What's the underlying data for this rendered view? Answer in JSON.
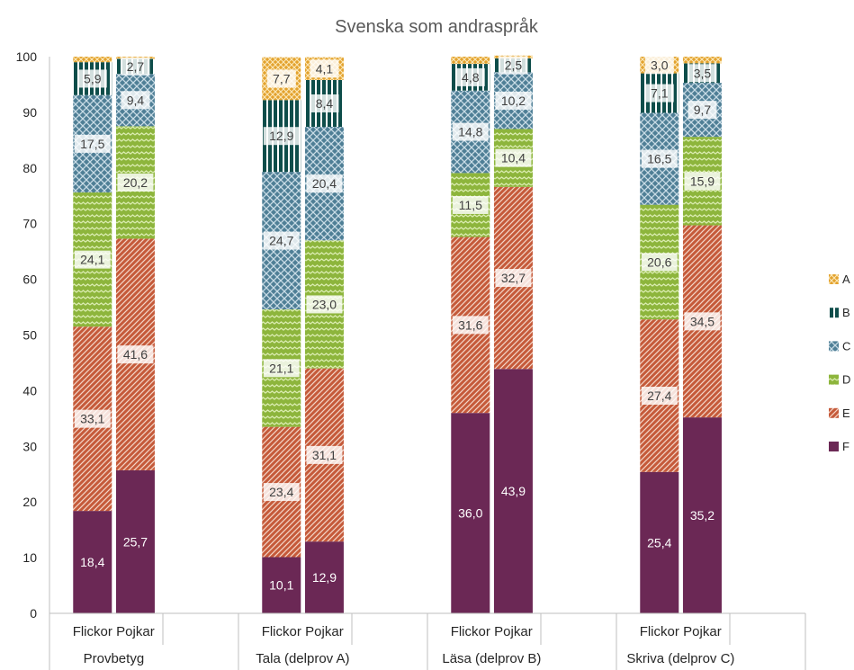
{
  "chart_data": {
    "type": "bar",
    "stacked": true,
    "title": "Svenska som andraspråk",
    "xlabel": "",
    "ylabel": "",
    "ylim": [
      0,
      100
    ],
    "yticks": [
      0,
      10,
      20,
      30,
      40,
      50,
      60,
      70,
      80,
      90,
      100
    ],
    "grid": false,
    "legend_position": "right",
    "groups": [
      "Provbetyg",
      "Tala (delprov A)",
      "Läsa (delprov B)",
      "Skriva (delprov C)"
    ],
    "subcategories": [
      "Flickor",
      "Pojkar"
    ],
    "categories": [
      "Provbetyg / Flickor",
      "Provbetyg / Pojkar",
      "Tala (delprov A) / Flickor",
      "Tala (delprov A) / Pojkar",
      "Läsa (delprov B) / Flickor",
      "Läsa (delprov B) / Pojkar",
      "Skriva (delprov C) / Flickor",
      "Skriva (delprov C) / Pojkar"
    ],
    "series": [
      {
        "name": "F",
        "color": "#6B2855",
        "values": [
          18.4,
          25.7,
          10.1,
          12.9,
          36.0,
          43.9,
          25.4,
          35.2
        ],
        "labels": [
          "18,4",
          "25,7",
          "10,1",
          "12,9",
          "36,0",
          "43,9",
          "25,4",
          "35,2"
        ]
      },
      {
        "name": "E",
        "color": "#C55A3A",
        "values": [
          33.1,
          41.6,
          23.4,
          31.1,
          31.6,
          32.7,
          27.4,
          34.5
        ],
        "labels": [
          "33,1",
          "41,6",
          "23,4",
          "31,1",
          "31,6",
          "32,7",
          "27,4",
          "34,5"
        ]
      },
      {
        "name": "D",
        "color": "#8DB53C",
        "values": [
          24.1,
          20.2,
          21.1,
          23.0,
          11.5,
          10.4,
          20.6,
          15.9
        ],
        "labels": [
          "24,1",
          "20,2",
          "21,1",
          "23,0",
          "11,5",
          "10,4",
          "20,6",
          "15,9"
        ]
      },
      {
        "name": "C",
        "color": "#4F7F96",
        "values": [
          17.5,
          9.4,
          24.7,
          20.4,
          14.8,
          10.2,
          16.5,
          9.7
        ],
        "labels": [
          "17,5",
          "9,4",
          "24,7",
          "20,4",
          "14,8",
          "10,2",
          "16,5",
          "9,7"
        ]
      },
      {
        "name": "B",
        "color": "#0E4D4A",
        "values": [
          5.9,
          2.7,
          12.9,
          8.4,
          4.8,
          2.5,
          7.1,
          3.5
        ],
        "labels": [
          "5,9",
          "2,7",
          "12,9",
          "8,4",
          "4,8",
          "2,5",
          "7,1",
          "3,5"
        ]
      },
      {
        "name": "A",
        "color": "#E3A22E",
        "values": [
          1.0,
          0.4,
          7.7,
          4.1,
          1.3,
          0.5,
          3.0,
          1.2
        ],
        "labels": [
          "",
          "",
          "7,7",
          "4,1",
          "",
          "",
          "3,0",
          ""
        ]
      }
    ]
  }
}
